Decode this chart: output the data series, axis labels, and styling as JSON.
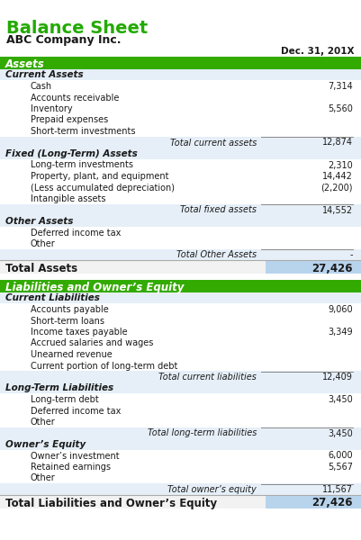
{
  "title": "Balance Sheet",
  "company": "ABC Company Inc.",
  "date": "Dec. 31, 201X",
  "title_color": "#22aa00",
  "company_color": "#1a1a1a",
  "header_bg": "#33aa00",
  "header_text_color": "#ffffff",
  "total_bg": "#cce0ff",
  "sections": [
    {
      "type": "section_header",
      "text": "Assets"
    },
    {
      "type": "subsection_header",
      "text": "Current Assets"
    },
    {
      "type": "item",
      "label": "Cash",
      "value": "7,314"
    },
    {
      "type": "item",
      "label": "Accounts receivable",
      "value": ""
    },
    {
      "type": "item",
      "label": "Inventory",
      "value": "5,560"
    },
    {
      "type": "item",
      "label": "Prepaid expenses",
      "value": ""
    },
    {
      "type": "item",
      "label": "Short-term investments",
      "value": ""
    },
    {
      "type": "subtotal",
      "label": "Total current assets",
      "value": "12,874"
    },
    {
      "type": "subsection_header",
      "text": "Fixed (Long-Term) Assets"
    },
    {
      "type": "item",
      "label": "Long-term investments",
      "value": "2,310"
    },
    {
      "type": "item",
      "label": "Property, plant, and equipment",
      "value": "14,442"
    },
    {
      "type": "item",
      "label": "(Less accumulated depreciation)",
      "value": "(2,200)"
    },
    {
      "type": "item",
      "label": "Intangible assets",
      "value": ""
    },
    {
      "type": "subtotal",
      "label": "Total fixed assets",
      "value": "14,552"
    },
    {
      "type": "subsection_header",
      "text": "Other Assets"
    },
    {
      "type": "item",
      "label": "Deferred income tax",
      "value": ""
    },
    {
      "type": "item",
      "label": "Other",
      "value": ""
    },
    {
      "type": "subtotal",
      "label": "Total Other Assets",
      "value": "-"
    },
    {
      "type": "grand_total",
      "label": "Total Assets",
      "value": "27,426"
    },
    {
      "type": "spacer"
    },
    {
      "type": "section_header",
      "text": "Liabilities and Owner’s Equity"
    },
    {
      "type": "subsection_header",
      "text": "Current Liabilities"
    },
    {
      "type": "item",
      "label": "Accounts payable",
      "value": "9,060"
    },
    {
      "type": "item",
      "label": "Short-term loans",
      "value": ""
    },
    {
      "type": "item",
      "label": "Income taxes payable",
      "value": "3,349"
    },
    {
      "type": "item",
      "label": "Accrued salaries and wages",
      "value": ""
    },
    {
      "type": "item",
      "label": "Unearned revenue",
      "value": ""
    },
    {
      "type": "item",
      "label": "Current portion of long-term debt",
      "value": ""
    },
    {
      "type": "subtotal",
      "label": "Total current liabilities",
      "value": "12,409"
    },
    {
      "type": "subsection_header",
      "text": "Long-Term Liabilities"
    },
    {
      "type": "item",
      "label": "Long-term debt",
      "value": "3,450"
    },
    {
      "type": "item",
      "label": "Deferred income tax",
      "value": ""
    },
    {
      "type": "item",
      "label": "Other",
      "value": ""
    },
    {
      "type": "subtotal",
      "label": "Total long-term liabilities",
      "value": "3,450"
    },
    {
      "type": "subsection_header",
      "text": "Owner’s Equity"
    },
    {
      "type": "item",
      "label": "Owner’s investment",
      "value": "6,000"
    },
    {
      "type": "item",
      "label": "Retained earnings",
      "value": "5,567"
    },
    {
      "type": "item",
      "label": "Other",
      "value": ""
    },
    {
      "type": "subtotal",
      "label": "Total owner’s equity",
      "value": "11,567"
    },
    {
      "type": "grand_total",
      "label": "Total Liabilities and Owner’s Equity",
      "value": "27,426"
    }
  ]
}
